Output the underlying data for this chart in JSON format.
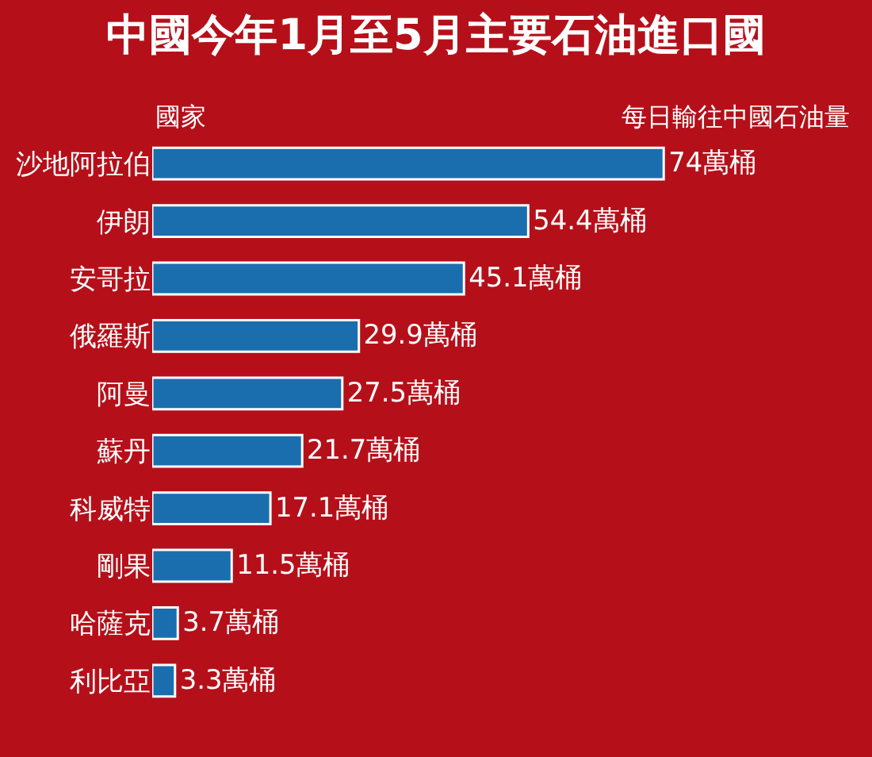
{
  "chart_data": {
    "type": "bar",
    "orientation": "horizontal",
    "title": "中國今年1月至5月主要石油進口國",
    "ylabel": "國家",
    "xlabel": "每日輸往中國石油量",
    "categories": [
      "沙地阿拉伯",
      "伊朗",
      "安哥拉",
      "俄羅斯",
      "阿曼",
      "蘇丹",
      "科威特",
      "剛果",
      "哈薩克",
      "利比亞"
    ],
    "values": [
      74,
      54.4,
      45.1,
      29.9,
      27.5,
      21.7,
      17.1,
      11.5,
      3.7,
      3.3
    ],
    "value_labels": [
      "74萬桶",
      "54.4萬桶",
      "45.1萬桶",
      "29.9萬桶",
      "27.5萬桶",
      "21.7萬桶",
      "17.1萬桶",
      "11.5萬桶",
      "3.7萬桶",
      "3.3萬桶"
    ],
    "color": "#1a6eae"
  }
}
